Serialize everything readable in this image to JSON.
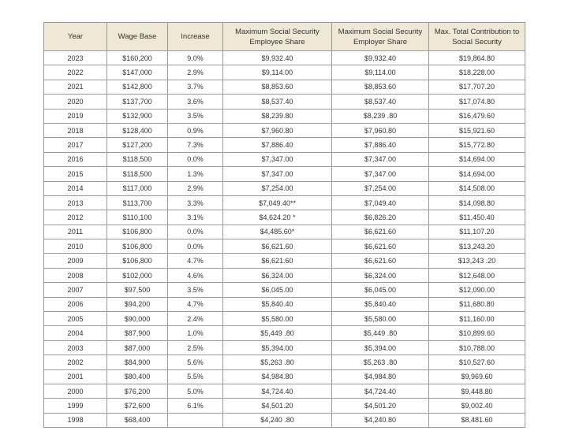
{
  "table": {
    "columns": [
      "Year",
      "Wage Base",
      "Increase",
      "Maximum Social Security Employee Share",
      "Maximum Social Security Employer Share",
      "Max. Total Contribution to Social Security"
    ],
    "rows": [
      [
        "2023",
        "$160,200",
        "9.0%",
        "$9,932.40",
        "$9,932.40",
        "$19,864.80"
      ],
      [
        "2022",
        "$147,000",
        "2.9%",
        "$9,114.00",
        "$9,114.00",
        "$18,228.00"
      ],
      [
        "2021",
        "$142,800",
        "3.7%",
        "$8,853.60",
        "$8,853.60",
        "$17,707.20"
      ],
      [
        "2020",
        "$137,700",
        "3.6%",
        "$8,537.40",
        "$8,537.40",
        "$17,074.80"
      ],
      [
        "2019",
        "$132,900",
        "3.5%",
        "$8,239.80",
        "$8,239 .80",
        "$16,479.60"
      ],
      [
        "2018",
        "$128,400",
        "0.9%",
        "$7,960.80",
        "$7,960.80",
        "$15,921.60"
      ],
      [
        "2017",
        "$127,200",
        "7.3%",
        "$7,886.40",
        "$7,886.40",
        "$15,772.80"
      ],
      [
        "2016",
        "$118,500",
        "0.0%",
        "$7,347.00",
        "$7,347.00",
        "$14,694.00"
      ],
      [
        "2015",
        "$118,500",
        "1.3%",
        "$7,347.00",
        "$7,347.00",
        "$14,694.00"
      ],
      [
        "2014",
        "$117,000",
        "2.9%",
        "$7,254.00",
        "$7,254.00",
        "$14,508.00"
      ],
      [
        "2013",
        "$113,700",
        "3.3%",
        "$7,049.40**",
        "$7,049.40",
        "$14,098.80"
      ],
      [
        "2012",
        "$110,100",
        "3.1%",
        "$4,624.20 *",
        "$6,826.20",
        "$11,450.40"
      ],
      [
        "2011",
        "$106,800",
        "0.0%",
        "$4,485.60*",
        "$6,621.60",
        "$11,107.20"
      ],
      [
        "2010",
        "$106,800",
        "0.0%",
        "$6,621.60",
        "$6,621.60",
        "$13,243.20"
      ],
      [
        "2009",
        "$106,800",
        "4.7%",
        "$6,621.60",
        "$6,621.60",
        "$13,243 .20"
      ],
      [
        "2008",
        "$102,000",
        "4.6%",
        "$6,324.00",
        "$6,324.00",
        "$12,648.00"
      ],
      [
        "2007",
        "$97,500",
        "3.5%",
        "$6,045.00",
        "$6,045.00",
        "$12,090.00"
      ],
      [
        "2006",
        "$94,200",
        "4.7%",
        "$5,840.40",
        "$5,840.40",
        "$11,680.80"
      ],
      [
        "2005",
        "$90,000",
        "2.4%",
        "$5,580.00",
        "$5,580.00",
        "$11,160.00"
      ],
      [
        "2004",
        "$87,900",
        "1.0%",
        "$5,449 .80",
        "$5,449 .80",
        "$10,899.60"
      ],
      [
        "2003",
        "$87,000",
        "2.5%",
        "$5,394.00",
        "$5,394.00",
        "$10,788.00"
      ],
      [
        "2002",
        "$84,900",
        "5.6%",
        "$5,263 .80",
        "$5,263 .80",
        "$10,527.60"
      ],
      [
        "2001",
        "$80,400",
        "5.5%",
        "$4,984.80",
        "$4,984.80",
        "$9,969.60"
      ],
      [
        "2000",
        "$76,200",
        "5.0%",
        "$4,724.40",
        "$4,724.40",
        "$9,448.80"
      ],
      [
        "1999",
        "$72,600",
        "6.1%",
        "$4,501.20",
        "$4,501.20",
        "$9,002.40"
      ],
      [
        "1998",
        "$68,400",
        null,
        "$4,240 .80",
        "$4,240.80",
        "$8,481.60"
      ]
    ]
  }
}
